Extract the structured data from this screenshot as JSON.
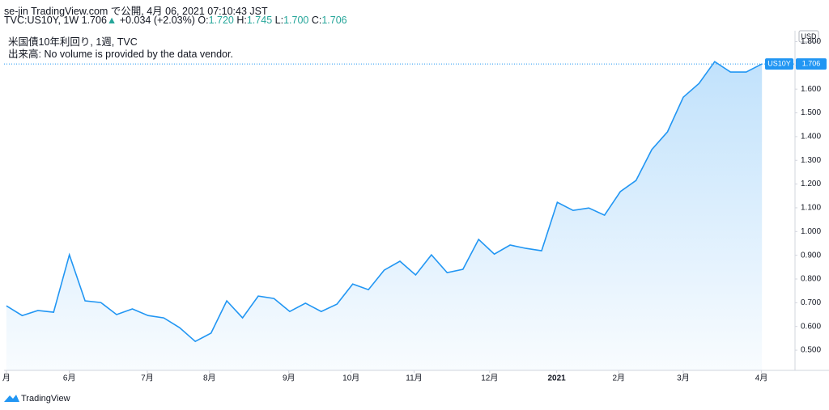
{
  "header": {
    "published": "se-jin TradingView.com で公開, 4月 06, 2021 07:10:43 JST",
    "symbol": "TVC:US10Y, 1W 1.706",
    "arrow": "▲",
    "change": "+0.034 (+2.03%)",
    "o_label": "O:",
    "o": "1.720",
    "h_label": "H:",
    "h": "1.745",
    "l_label": "L:",
    "l": "1.700",
    "c_label": "C:",
    "c": "1.706",
    "legend": "米国債10年利回り, 1週, TVC",
    "volume": "出来高: No volume is provided by the data vendor."
  },
  "currency": "USD",
  "price_tag": {
    "symbol": "US10Y",
    "price": "1.706"
  },
  "footer": "TradingView",
  "chart_data": {
    "type": "area",
    "color": "#2196f3",
    "x": [
      0,
      1,
      2,
      3,
      4,
      5,
      6,
      7,
      8,
      9,
      10,
      11,
      12,
      13,
      14,
      15,
      16,
      17,
      18,
      19,
      20,
      21,
      22,
      23,
      24,
      25,
      26,
      27,
      28,
      29,
      30,
      31,
      32,
      33,
      34,
      35,
      36,
      37,
      38,
      39,
      40,
      41,
      42,
      43,
      44,
      45,
      46,
      47,
      48
    ],
    "values": [
      0.687,
      0.646,
      0.667,
      0.66,
      0.902,
      0.708,
      0.701,
      0.65,
      0.674,
      0.646,
      0.636,
      0.595,
      0.537,
      0.572,
      0.708,
      0.636,
      0.728,
      0.718,
      0.663,
      0.698,
      0.663,
      0.694,
      0.779,
      0.755,
      0.837,
      0.875,
      0.817,
      0.902,
      0.827,
      0.841,
      0.967,
      0.905,
      0.943,
      0.929,
      0.919,
      1.123,
      1.089,
      1.099,
      1.069,
      1.168,
      1.215,
      1.345,
      1.42,
      1.566,
      1.624,
      1.716,
      1.672,
      1.672,
      1.706
    ],
    "xlim": [
      -0.15,
      50.1
    ],
    "xticks": [
      {
        "value": 0,
        "label": "月"
      },
      {
        "value": 4,
        "label": "6月"
      },
      {
        "value": 8.95,
        "label": "7月"
      },
      {
        "value": 12.9,
        "label": "8月"
      },
      {
        "value": 17.94,
        "label": "9月"
      },
      {
        "value": 21.9,
        "label": "10月"
      },
      {
        "value": 25.9,
        "label": "11月"
      },
      {
        "value": 30.7,
        "label": "12月"
      },
      {
        "value": 34.96,
        "label": "2021"
      },
      {
        "value": 38.9,
        "label": "2月"
      },
      {
        "value": 43,
        "label": "3月"
      },
      {
        "value": 47.97,
        "label": "4月"
      }
    ],
    "ylim": [
      0.415,
      1.846
    ],
    "yticks": [
      {
        "value": 0.5,
        "label": "0.500"
      },
      {
        "value": 0.6,
        "label": "0.600"
      },
      {
        "value": 0.7,
        "label": "0.700"
      },
      {
        "value": 0.8,
        "label": "0.800"
      },
      {
        "value": 0.9,
        "label": "0.900"
      },
      {
        "value": 1.0,
        "label": "1.000"
      },
      {
        "value": 1.1,
        "label": "1.100"
      },
      {
        "value": 1.2,
        "label": "1.200"
      },
      {
        "value": 1.3,
        "label": "1.300"
      },
      {
        "value": 1.4,
        "label": "1.400"
      },
      {
        "value": 1.5,
        "label": "1.500"
      },
      {
        "value": 1.6,
        "label": "1.600"
      },
      {
        "value": 1.7,
        "label": "1.700"
      },
      {
        "value": 1.8,
        "label": "1.800"
      }
    ],
    "grid": false
  }
}
